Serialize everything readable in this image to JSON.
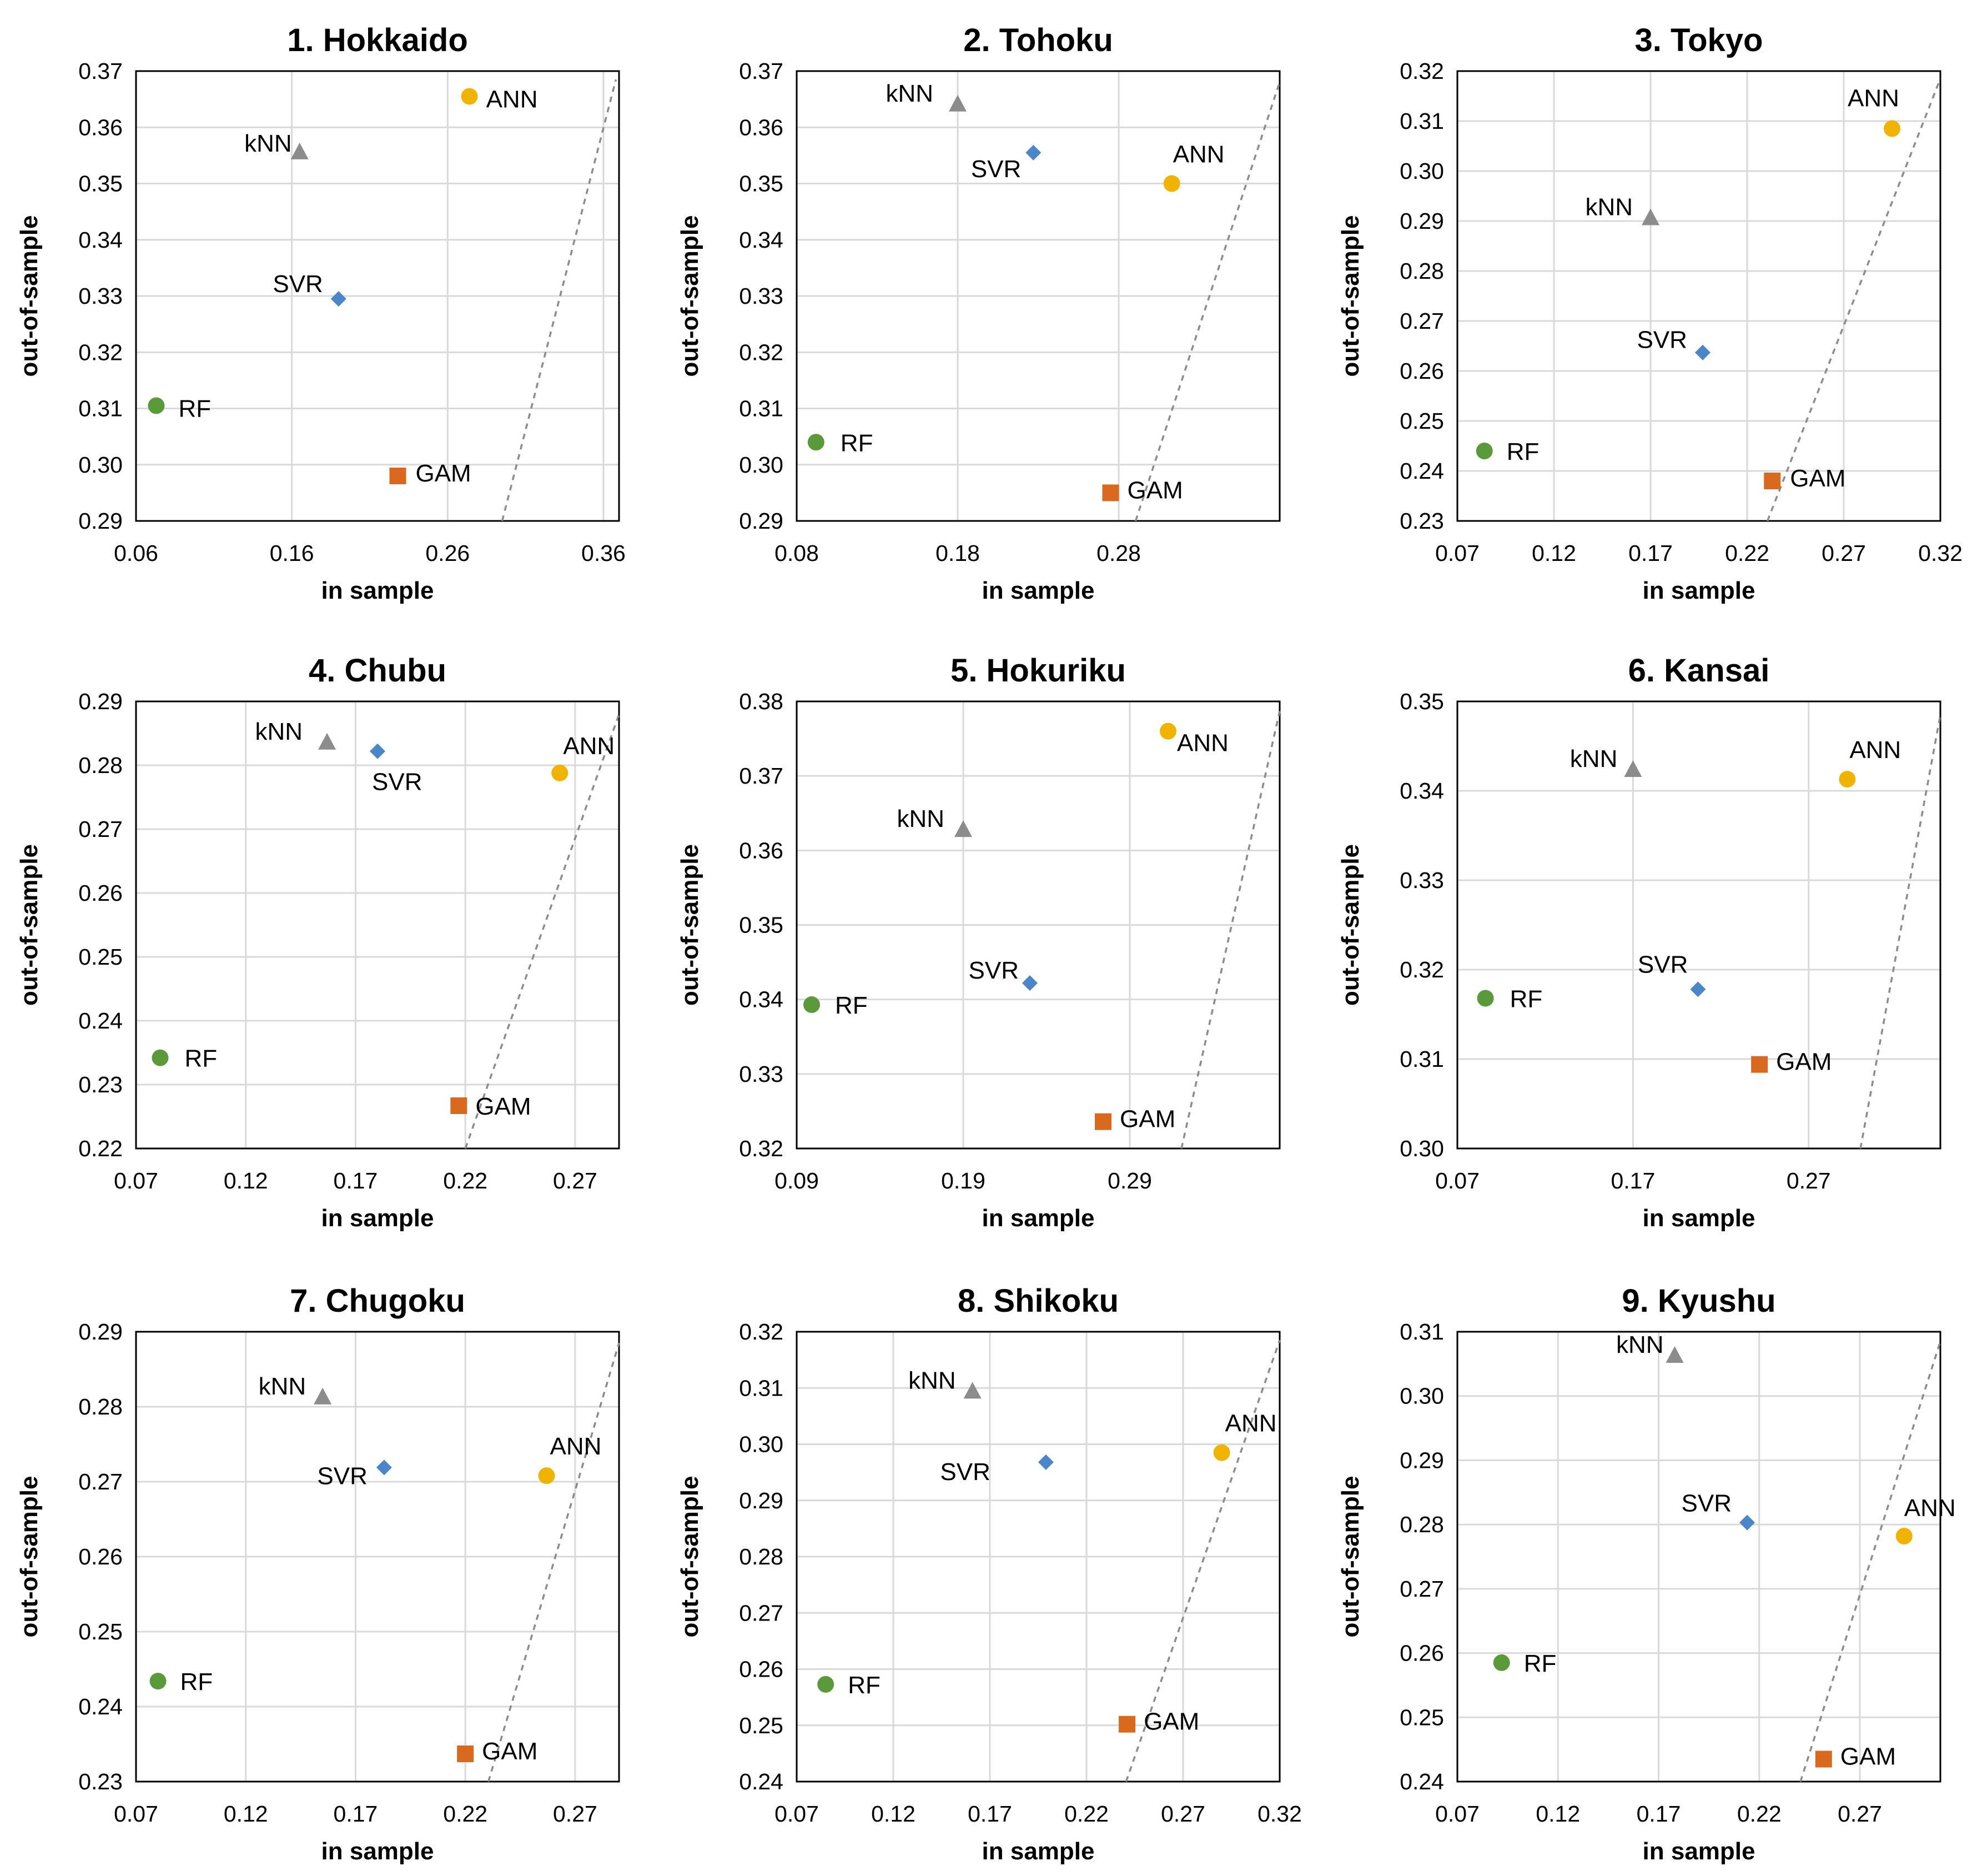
{
  "chart_data": [
    {
      "type": "scatter",
      "title": "1. Hokkaido",
      "xlabel": "in sample",
      "ylabel": "out-of-sample",
      "xlim": [
        0.06,
        0.37
      ],
      "ylim": [
        0.29,
        0.37
      ],
      "xticks": [
        "0.06",
        "0.16",
        "0.26",
        "0.36"
      ],
      "yticks": [
        "0.29",
        "0.30",
        "0.31",
        "0.32",
        "0.33",
        "0.34",
        "0.35",
        "0.36",
        "0.37"
      ],
      "diagonal": [
        [
          0.295,
          0.29
        ],
        [
          0.368,
          0.3685
        ]
      ],
      "points": [
        {
          "name": "ANN",
          "x": 0.274,
          "y": 0.3655
        },
        {
          "name": "kNN",
          "x": 0.165,
          "y": 0.3555
        },
        {
          "name": "SVR",
          "x": 0.19,
          "y": 0.3295
        },
        {
          "name": "RF",
          "x": 0.073,
          "y": 0.3105
        },
        {
          "name": "GAM",
          "x": 0.228,
          "y": 0.298
        }
      ]
    },
    {
      "type": "scatter",
      "title": "2. Tohoku",
      "xlabel": "in sample",
      "ylabel": "out-of-sample",
      "xlim": [
        0.08,
        0.38
      ],
      "ylim": [
        0.29,
        0.37
      ],
      "xticks": [
        "0.08",
        "0.18",
        "0.28"
      ],
      "yticks": [
        "0.29",
        "0.30",
        "0.31",
        "0.32",
        "0.33",
        "0.34",
        "0.35",
        "0.36",
        "0.37"
      ],
      "diagonal": [
        [
          0.2905,
          0.29
        ],
        [
          0.3805,
          0.3685
        ]
      ],
      "points": [
        {
          "name": "kNN",
          "x": 0.18,
          "y": 0.364
        },
        {
          "name": "SVR",
          "x": 0.227,
          "y": 0.3555
        },
        {
          "name": "ANN",
          "x": 0.313,
          "y": 0.35
        },
        {
          "name": "RF",
          "x": 0.092,
          "y": 0.304
        },
        {
          "name": "GAM",
          "x": 0.275,
          "y": 0.295
        }
      ]
    },
    {
      "type": "scatter",
      "title": "3. Tokyo",
      "xlabel": "in sample",
      "ylabel": "out-of-sample",
      "xlim": [
        0.07,
        0.32
      ],
      "ylim": [
        0.23,
        0.32
      ],
      "xticks": [
        "0.07",
        "0.12",
        "0.17",
        "0.22",
        "0.27",
        "0.32"
      ],
      "yticks": [
        "0.23",
        "0.24",
        "0.25",
        "0.26",
        "0.27",
        "0.28",
        "0.29",
        "0.30",
        "0.31",
        "0.32"
      ],
      "diagonal": [
        [
          0.2305,
          0.23
        ],
        [
          0.32,
          0.3185
        ]
      ],
      "points": [
        {
          "name": "ANN",
          "x": 0.295,
          "y": 0.3085
        },
        {
          "name": "kNN",
          "x": 0.17,
          "y": 0.2905
        },
        {
          "name": "SVR",
          "x": 0.197,
          "y": 0.2637
        },
        {
          "name": "RF",
          "x": 0.084,
          "y": 0.244
        },
        {
          "name": "GAM",
          "x": 0.233,
          "y": 0.238
        }
      ]
    },
    {
      "type": "scatter",
      "title": "4. Chubu",
      "xlabel": "in sample",
      "ylabel": "out-of-sample",
      "xlim": [
        0.07,
        0.29
      ],
      "ylim": [
        0.22,
        0.29
      ],
      "xticks": [
        "0.07",
        "0.12",
        "0.17",
        "0.22",
        "0.27"
      ],
      "yticks": [
        "0.22",
        "0.23",
        "0.24",
        "0.25",
        "0.26",
        "0.27",
        "0.28",
        "0.29"
      ],
      "diagonal": [
        [
          0.22,
          0.22
        ],
        [
          0.29,
          0.288
        ]
      ],
      "points": [
        {
          "name": "kNN",
          "x": 0.157,
          "y": 0.2835
        },
        {
          "name": "SVR",
          "x": 0.18,
          "y": 0.2822
        },
        {
          "name": "ANN",
          "x": 0.263,
          "y": 0.2788
        },
        {
          "name": "RF",
          "x": 0.081,
          "y": 0.2342
        },
        {
          "name": "GAM",
          "x": 0.217,
          "y": 0.2267
        }
      ]
    },
    {
      "type": "scatter",
      "title": "5. Hokuriku",
      "xlabel": "in sample",
      "ylabel": "out-of-sample",
      "xlim": [
        0.09,
        0.38
      ],
      "ylim": [
        0.32,
        0.38
      ],
      "xticks": [
        "0.09",
        "0.19",
        "0.29"
      ],
      "yticks": [
        "0.32",
        "0.33",
        "0.34",
        "0.35",
        "0.36",
        "0.37",
        "0.38"
      ],
      "diagonal": [
        [
          0.321,
          0.32
        ],
        [
          0.38,
          0.3787
        ]
      ],
      "points": [
        {
          "name": "ANN",
          "x": 0.313,
          "y": 0.376
        },
        {
          "name": "kNN",
          "x": 0.19,
          "y": 0.3627
        },
        {
          "name": "SVR",
          "x": 0.23,
          "y": 0.3422
        },
        {
          "name": "RF",
          "x": 0.099,
          "y": 0.3393
        },
        {
          "name": "GAM",
          "x": 0.274,
          "y": 0.3236
        }
      ]
    },
    {
      "type": "scatter",
      "title": "6. Kansai",
      "xlabel": "in sample",
      "ylabel": "out-of-sample",
      "xlim": [
        0.07,
        0.345
      ],
      "ylim": [
        0.3,
        0.35
      ],
      "xticks": [
        "0.07",
        "0.17",
        "0.27"
      ],
      "yticks": [
        "0.30",
        "0.31",
        "0.32",
        "0.33",
        "0.34",
        "0.35"
      ],
      "diagonal": [
        [
          0.2995,
          0.3
        ],
        [
          0.345,
          0.3485
        ]
      ],
      "points": [
        {
          "name": "kNN",
          "x": 0.17,
          "y": 0.3423
        },
        {
          "name": "ANN",
          "x": 0.292,
          "y": 0.3413
        },
        {
          "name": "SVR",
          "x": 0.207,
          "y": 0.3178
        },
        {
          "name": "RF",
          "x": 0.086,
          "y": 0.3168
        },
        {
          "name": "GAM",
          "x": 0.242,
          "y": 0.3094
        }
      ]
    },
    {
      "type": "scatter",
      "title": "7. Chugoku",
      "xlabel": "in sample",
      "ylabel": "out-of-sample",
      "xlim": [
        0.07,
        0.29
      ],
      "ylim": [
        0.23,
        0.29
      ],
      "xticks": [
        "0.07",
        "0.12",
        "0.17",
        "0.22",
        "0.27"
      ],
      "yticks": [
        "0.23",
        "0.24",
        "0.25",
        "0.26",
        "0.27",
        "0.28",
        "0.29"
      ],
      "diagonal": [
        [
          0.2305,
          0.23
        ],
        [
          0.29,
          0.2885
        ]
      ],
      "points": [
        {
          "name": "kNN",
          "x": 0.155,
          "y": 0.2812
        },
        {
          "name": "SVR",
          "x": 0.183,
          "y": 0.2719
        },
        {
          "name": "ANN",
          "x": 0.257,
          "y": 0.2708
        },
        {
          "name": "RF",
          "x": 0.08,
          "y": 0.2434
        },
        {
          "name": "GAM",
          "x": 0.22,
          "y": 0.2337
        }
      ]
    },
    {
      "type": "scatter",
      "title": "8. Shikoku",
      "xlabel": "in sample",
      "ylabel": "out-of-sample",
      "xlim": [
        0.07,
        0.32
      ],
      "ylim": [
        0.24,
        0.32
      ],
      "xticks": [
        "0.07",
        "0.12",
        "0.17",
        "0.22",
        "0.27",
        "0.32"
      ],
      "yticks": [
        "0.24",
        "0.25",
        "0.26",
        "0.27",
        "0.28",
        "0.29",
        "0.30",
        "0.31",
        "0.32"
      ],
      "diagonal": [
        [
          0.2405,
          0.24
        ],
        [
          0.32,
          0.3185
        ]
      ],
      "points": [
        {
          "name": "kNN",
          "x": 0.161,
          "y": 0.3093
        },
        {
          "name": "SVR",
          "x": 0.199,
          "y": 0.2968
        },
        {
          "name": "ANN",
          "x": 0.29,
          "y": 0.2985
        },
        {
          "name": "RF",
          "x": 0.085,
          "y": 0.2573
        },
        {
          "name": "GAM",
          "x": 0.241,
          "y": 0.2502
        }
      ]
    },
    {
      "type": "scatter",
      "title": "9. Kyushu",
      "xlabel": "in sample",
      "ylabel": "out-of-sample",
      "xlim": [
        0.07,
        0.31
      ],
      "ylim": [
        0.24,
        0.31
      ],
      "xticks": [
        "0.07",
        "0.12",
        "0.17",
        "0.22",
        "0.27"
      ],
      "yticks": [
        "0.24",
        "0.25",
        "0.26",
        "0.27",
        "0.28",
        "0.29",
        "0.30",
        "0.31"
      ],
      "diagonal": [
        [
          0.2405,
          0.24
        ],
        [
          0.31,
          0.3085
        ]
      ],
      "points": [
        {
          "name": "kNN",
          "x": 0.178,
          "y": 0.3062
        },
        {
          "name": "SVR",
          "x": 0.214,
          "y": 0.2803
        },
        {
          "name": "ANN",
          "x": 0.292,
          "y": 0.2782
        },
        {
          "name": "RF",
          "x": 0.092,
          "y": 0.2585
        },
        {
          "name": "GAM",
          "x": 0.252,
          "y": 0.2435
        }
      ]
    }
  ],
  "legend_colors": {
    "ANN": "#f0b400",
    "kNN": "#8c8c8c",
    "SVR": "#4a86c8",
    "RF": "#5a9a3a",
    "GAM": "#d8691e"
  },
  "marker_icons": {
    "ANN": "circle-icon",
    "kNN": "triangle-icon",
    "SVR": "diamond-icon",
    "RF": "circle-icon",
    "GAM": "square-icon"
  }
}
